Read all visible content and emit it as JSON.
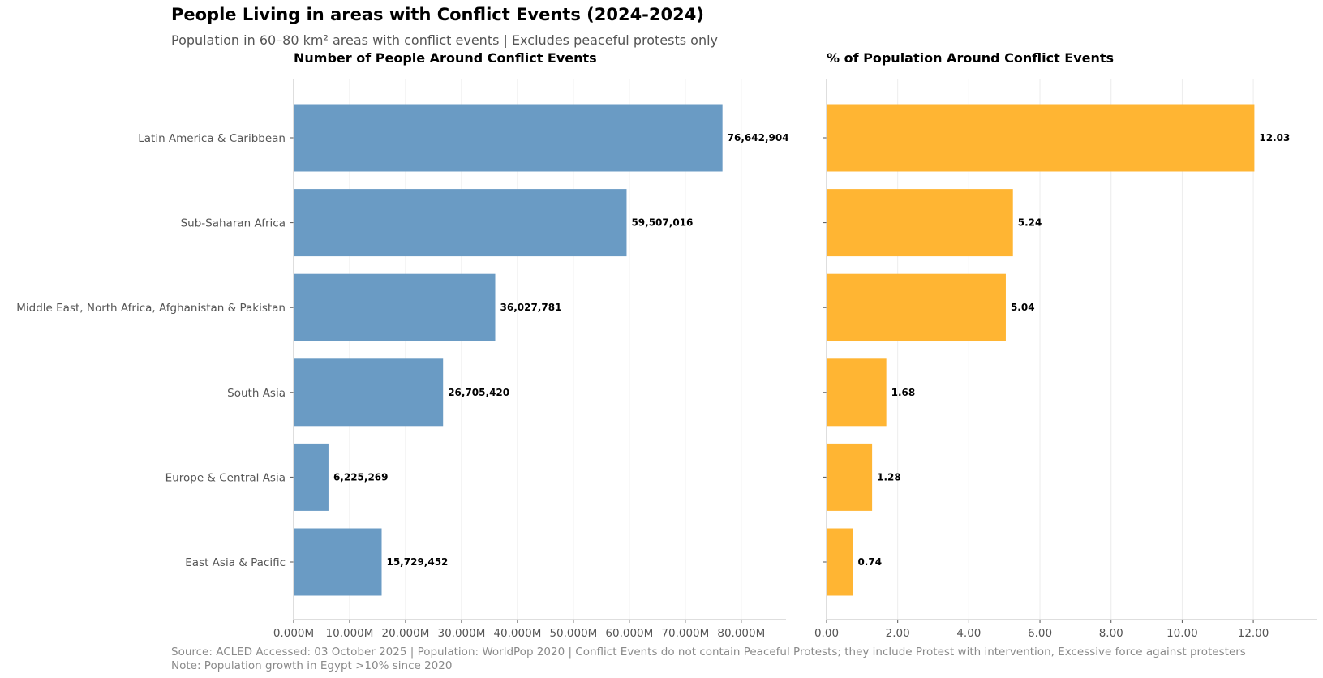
{
  "header": {
    "title": "People Living in areas with Conflict Events (2024-2024)",
    "subtitle": "Population in 60–80 km² areas with conflict events | Excludes peaceful protests only"
  },
  "footer": {
    "source": "Source: ACLED Accessed: 03 October 2025 | Population: WorldPop 2020 | Conflict Events do not contain Peaceful Protests; they include Protest with intervention, Excessive force against protesters",
    "note": "Note: Population growth in Egypt >10% since 2020"
  },
  "colors": {
    "people": "#6a9bc4",
    "percent": "#ffb533",
    "grid": "#ececec",
    "axis": "#bdbdbd"
  },
  "chart_data": [
    {
      "type": "bar",
      "orientation": "horizontal",
      "title": "Number of People Around Conflict Events",
      "categories": [
        "Latin America & Caribbean",
        "Sub-Saharan Africa",
        "Middle East, North Africa, Afghanistan & Pakistan",
        "South Asia",
        "Europe & Central Asia",
        "East Asia & Pacific"
      ],
      "values": [
        76642904,
        59507016,
        36027781,
        26705420,
        6225269,
        15729452
      ],
      "value_labels": [
        "76,642,904",
        "59,507,016",
        "36,027,781",
        "26,705,420",
        "6,225,269",
        "15,729,452"
      ],
      "xlim": [
        0,
        88000000
      ],
      "xticks": [
        0,
        10000000,
        20000000,
        30000000,
        40000000,
        50000000,
        60000000,
        70000000,
        80000000
      ],
      "xtick_labels": [
        "0.000M",
        "10.000M",
        "20.000M",
        "30.000M",
        "40.000M",
        "50.000M",
        "60.000M",
        "70.000M",
        "80.000M"
      ],
      "grid": true
    },
    {
      "type": "bar",
      "orientation": "horizontal",
      "title": "% of Population Around Conflict Events",
      "categories": [
        "Latin America & Caribbean",
        "Sub-Saharan Africa",
        "Middle East, North Africa, Afghanistan & Pakistan",
        "South Asia",
        "Europe & Central Asia",
        "East Asia & Pacific"
      ],
      "values": [
        12.03,
        5.24,
        5.04,
        1.68,
        1.28,
        0.74
      ],
      "value_labels": [
        "12.03",
        "5.24",
        "5.04",
        "1.68",
        "1.28",
        "0.74"
      ],
      "xlim": [
        0,
        13.8
      ],
      "xticks": [
        0,
        2,
        4,
        6,
        8,
        10,
        12
      ],
      "xtick_labels": [
        "0.00",
        "2.00",
        "4.00",
        "6.00",
        "8.00",
        "10.00",
        "12.00"
      ],
      "grid": true
    }
  ]
}
